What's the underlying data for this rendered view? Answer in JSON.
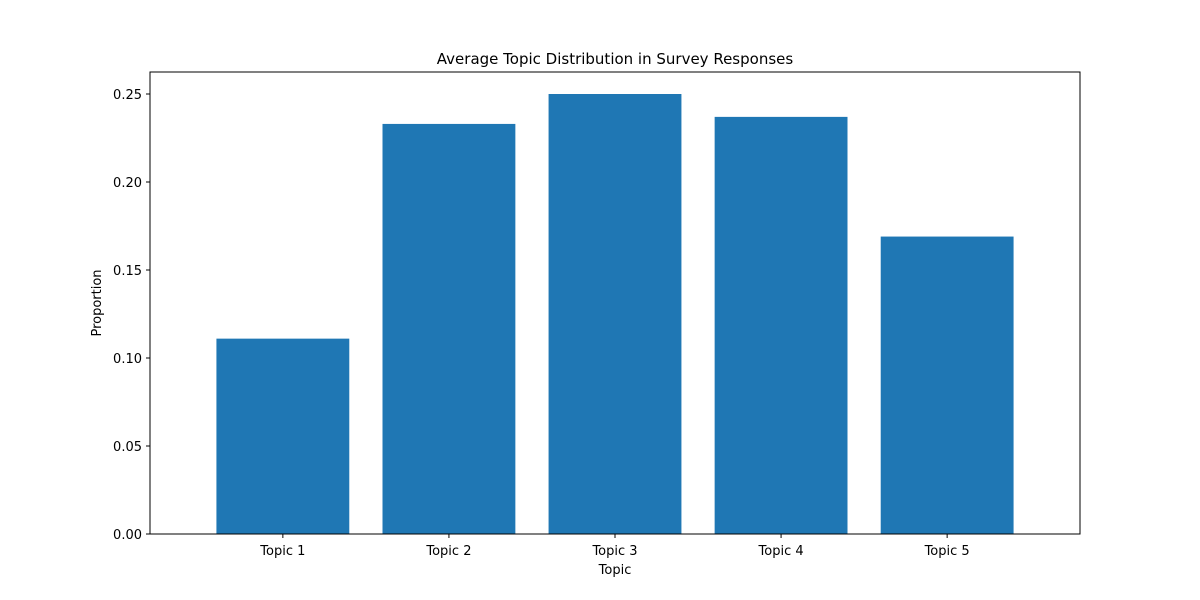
{
  "chart_data": {
    "type": "bar",
    "title": "Average Topic Distribution in Survey Responses",
    "xlabel": "Topic",
    "ylabel": "Proportion",
    "categories": [
      "Topic 1",
      "Topic 2",
      "Topic 3",
      "Topic 4",
      "Topic 5"
    ],
    "values": [
      0.111,
      0.233,
      0.25,
      0.237,
      0.169
    ],
    "ylim": [
      0,
      0.2625
    ],
    "yticks": [
      0.0,
      0.05,
      0.1,
      0.15,
      0.2,
      0.25
    ],
    "ytick_labels": [
      "0.00",
      "0.05",
      "0.10",
      "0.15",
      "0.20",
      "0.25"
    ],
    "grid": false,
    "bar_color": "#1f77b4"
  }
}
